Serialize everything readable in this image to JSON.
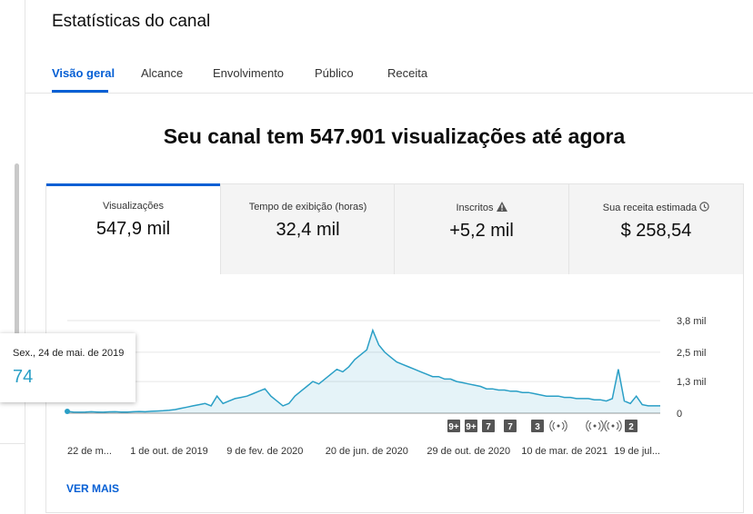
{
  "header": {
    "title": "Estatísticas do canal"
  },
  "tabs": [
    "Visão geral",
    "Alcance",
    "Envolvimento",
    "Público",
    "Receita"
  ],
  "headline": "Seu canal tem 547.901 visualizações até agora",
  "metrics": [
    {
      "label": "Visualizações",
      "value": "547,9 mil"
    },
    {
      "label": "Tempo de exibição (horas)",
      "value": "32,4 mil"
    },
    {
      "label": "Inscritos",
      "value": "+5,2 mil"
    },
    {
      "label": "Sua receita estimada",
      "value": "$ 258,54"
    }
  ],
  "tooltip": {
    "date": "Sex., 24 de mai. de 2019"
  },
  "more": "VER MAIS",
  "chart_data": {
    "type": "line",
    "color": "#2a9fc6",
    "grid": true,
    "categories": [
      "22 de m...",
      null,
      null,
      null,
      null,
      null,
      null,
      null,
      null,
      null,
      null,
      null,
      null,
      null,
      null,
      null,
      null,
      "1 de out. de 2019",
      null,
      null,
      null,
      null,
      null,
      null,
      null,
      null,
      null,
      null,
      null,
      null,
      null,
      null,
      null,
      "9 de fev. de 2020",
      null,
      null,
      null,
      null,
      null,
      null,
      null,
      null,
      null,
      null,
      null,
      null,
      null,
      null,
      null,
      null,
      "20 de jun. de 2020",
      null,
      null,
      null,
      null,
      null,
      null,
      null,
      null,
      null,
      null,
      null,
      null,
      null,
      null,
      null,
      null,
      "29 de out. de 2020",
      null,
      null,
      null,
      null,
      null,
      null,
      null,
      null,
      null,
      null,
      null,
      null,
      null,
      null,
      null,
      "10 de mar. de 2021",
      null,
      null,
      null,
      null,
      null,
      null,
      null,
      null,
      null,
      null,
      null,
      null,
      "19 de jul...",
      null,
      null,
      null
    ],
    "values": [
      74,
      50,
      40,
      45,
      60,
      50,
      40,
      55,
      60,
      50,
      45,
      60,
      70,
      60,
      80,
      90,
      100,
      120,
      150,
      200,
      250,
      300,
      350,
      400,
      300,
      700,
      400,
      500,
      600,
      650,
      700,
      800,
      900,
      1000,
      700,
      500,
      300,
      400,
      700,
      900,
      1100,
      1300,
      1200,
      1400,
      1600,
      1800,
      1700,
      1900,
      2200,
      2400,
      2600,
      3400,
      2800,
      2500,
      2300,
      2100,
      2000,
      1900,
      1800,
      1700,
      1600,
      1500,
      1500,
      1400,
      1400,
      1300,
      1250,
      1200,
      1150,
      1100,
      1000,
      1000,
      950,
      950,
      900,
      900,
      850,
      850,
      800,
      750,
      700,
      700,
      700,
      650,
      650,
      600,
      600,
      600,
      550,
      550,
      500,
      600,
      1800,
      500,
      400,
      700,
      350,
      300,
      300,
      300
    ],
    "ylim": [
      0,
      3800
    ],
    "yticks": [
      0,
      {
        "value": 1300,
        "label": "1,3 mil"
      },
      {
        "value": 2500,
        "label": "2,5 mil"
      },
      {
        "value": 3800,
        "label": "3,8 mil"
      }
    ],
    "events": [
      "9+",
      "9+",
      "7",
      "7",
      "3",
      "2"
    ]
  }
}
